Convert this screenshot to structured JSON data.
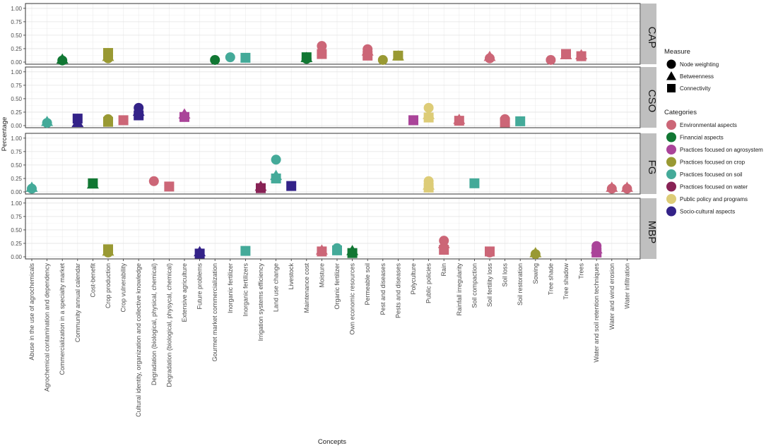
{
  "chart_data": {
    "type": "scatter",
    "xlabel": "Concepts",
    "ylabel": "Percentage",
    "ylim": [
      0,
      1.05
    ],
    "yticks": [
      "0.00",
      "0.25",
      "0.50",
      "0.75",
      "1.00"
    ],
    "grid": true,
    "legend_position": "right",
    "concepts": [
      "Abuse in the use of agrochemicals",
      "Agrochemical contamination and dependency",
      "Commercialization in a specialty market",
      "Community annual calendar",
      "Cost-benefit",
      "Crop production",
      "Crop vulnerability",
      "Cultural identity, organization and collective knowledge",
      "Degradation (biological, physical, chemical)",
      "Degradation (biological, physycal, chemical)",
      "Extensive agriculture",
      "Future problems",
      "Gourmet market commercialization",
      "Inorganic fertilizer",
      "Inorganic fertilizers",
      "Irrigation systems efficiency",
      "Land use change",
      "Livestock",
      "Maintenance cost",
      "Moisture",
      "Organic fertilizer",
      "Own economic resources",
      "Permeable soil",
      "Pest and diseases",
      "Pests and diseases",
      "Polyculture",
      "Public policies",
      "Rain",
      "Rainfall irregularity",
      "Soil compaction",
      "Soil fertility loss",
      "Soil loss",
      "Soil restoration",
      "Sowing",
      "Tree shade",
      "Tree shadow",
      "Trees",
      "Water and soil retention techniques",
      "Water and wind erosion",
      "Water infiltration"
    ],
    "panels": [
      "CAP",
      "CSO",
      "FG",
      "MBP"
    ],
    "measures": [
      {
        "name": "Node weighting",
        "shape": "circle"
      },
      {
        "name": "Betweenness",
        "shape": "triangle"
      },
      {
        "name": "Connectivity",
        "shape": "square"
      }
    ],
    "categories": [
      {
        "name": "Environmental aspects",
        "color": "#cc6677"
      },
      {
        "name": "Financial aspects",
        "color": "#117733"
      },
      {
        "name": "Practices focused on agrosystem",
        "color": "#aa4499"
      },
      {
        "name": "Practices focused on crop",
        "color": "#999933"
      },
      {
        "name": "Practices focused on soil",
        "color": "#44aa99"
      },
      {
        "name": "Practices focused on water",
        "color": "#882255"
      },
      {
        "name": "Public policy and programs",
        "color": "#ddcc77"
      },
      {
        "name": "Socio-cultural aspects",
        "color": "#332288"
      }
    ],
    "points": [
      {
        "panel": "CAP",
        "concept": "Commercialization in a specialty market",
        "category": "Financial aspects",
        "measure": "Betweenness",
        "y": 0.05
      },
      {
        "panel": "CAP",
        "concept": "Commercialization in a specialty market",
        "category": "Financial aspects",
        "measure": "Node weighting",
        "y": 0.03
      },
      {
        "panel": "CAP",
        "concept": "Crop production",
        "category": "Practices focused on crop",
        "measure": "Connectivity",
        "y": 0.17
      },
      {
        "panel": "CAP",
        "concept": "Crop production",
        "category": "Practices focused on crop",
        "measure": "Betweenness",
        "y": 0.1
      },
      {
        "panel": "CAP",
        "concept": "Crop production",
        "category": "Practices focused on crop",
        "measure": "Node weighting",
        "y": 0.07
      },
      {
        "panel": "CAP",
        "concept": "Gourmet market commercialization",
        "category": "Financial aspects",
        "measure": "Node weighting",
        "y": 0.04
      },
      {
        "panel": "CAP",
        "concept": "Inorganic fertilizer",
        "category": "Practices focused on soil",
        "measure": "Node weighting",
        "y": 0.09
      },
      {
        "panel": "CAP",
        "concept": "Inorganic fertilizers",
        "category": "Practices focused on soil",
        "measure": "Connectivity",
        "y": 0.08
      },
      {
        "panel": "CAP",
        "concept": "Maintenance cost",
        "category": "Financial aspects",
        "measure": "Connectivity",
        "y": 0.09
      },
      {
        "panel": "CAP",
        "concept": "Maintenance cost",
        "category": "Financial aspects",
        "measure": "Betweenness",
        "y": 0.08
      },
      {
        "panel": "CAP",
        "concept": "Maintenance cost",
        "category": "Financial aspects",
        "measure": "Node weighting",
        "y": 0.06
      },
      {
        "panel": "CAP",
        "concept": "Moisture",
        "category": "Environmental aspects",
        "measure": "Node weighting",
        "y": 0.3
      },
      {
        "panel": "CAP",
        "concept": "Moisture",
        "category": "Environmental aspects",
        "measure": "Connectivity",
        "y": 0.15
      },
      {
        "panel": "CAP",
        "concept": "Permeable soil",
        "category": "Environmental aspects",
        "measure": "Node weighting",
        "y": 0.24
      },
      {
        "panel": "CAP",
        "concept": "Permeable soil",
        "category": "Environmental aspects",
        "measure": "Betweenness",
        "y": 0.2
      },
      {
        "panel": "CAP",
        "concept": "Permeable soil",
        "category": "Environmental aspects",
        "measure": "Connectivity",
        "y": 0.12
      },
      {
        "panel": "CAP",
        "concept": "Pest and diseases",
        "category": "Practices focused on crop",
        "measure": "Node weighting",
        "y": 0.04
      },
      {
        "panel": "CAP",
        "concept": "Pests and diseases",
        "category": "Practices focused on crop",
        "measure": "Connectivity",
        "y": 0.12
      },
      {
        "panel": "CAP",
        "concept": "Pests and diseases",
        "category": "Practices focused on crop",
        "measure": "Betweenness",
        "y": 0.11
      },
      {
        "panel": "CAP",
        "concept": "Soil fertility loss",
        "category": "Environmental aspects",
        "measure": "Betweenness",
        "y": 0.1
      },
      {
        "panel": "CAP",
        "concept": "Soil fertility loss",
        "category": "Environmental aspects",
        "measure": "Node weighting",
        "y": 0.07
      },
      {
        "panel": "CAP",
        "concept": "Tree shade",
        "category": "Environmental aspects",
        "measure": "Node weighting",
        "y": 0.04
      },
      {
        "panel": "CAP",
        "concept": "Tree shadow",
        "category": "Environmental aspects",
        "measure": "Connectivity",
        "y": 0.15
      },
      {
        "panel": "CAP",
        "concept": "Tree shadow",
        "category": "Environmental aspects",
        "measure": "Betweenness",
        "y": 0.13
      },
      {
        "panel": "CAP",
        "concept": "Trees",
        "category": "Environmental aspects",
        "measure": "Betweenness",
        "y": 0.13
      },
      {
        "panel": "CAP",
        "concept": "Trees",
        "category": "Environmental aspects",
        "measure": "Connectivity",
        "y": 0.11
      },
      {
        "panel": "CSO",
        "concept": "Agrochemical contamination and dependency",
        "category": "Practices focused on soil",
        "measure": "Betweenness",
        "y": 0.07
      },
      {
        "panel": "CSO",
        "concept": "Agrochemical contamination and dependency",
        "category": "Practices focused on soil",
        "measure": "Node weighting",
        "y": 0.05
      },
      {
        "panel": "CSO",
        "concept": "Community annual calendar",
        "category": "Socio-cultural aspects",
        "measure": "Connectivity",
        "y": 0.13
      },
      {
        "panel": "CSO",
        "concept": "Community annual calendar",
        "category": "Socio-cultural aspects",
        "measure": "Betweenness",
        "y": 0.05
      },
      {
        "panel": "CSO",
        "concept": "Crop production",
        "category": "Practices focused on crop",
        "measure": "Node weighting",
        "y": 0.12
      },
      {
        "panel": "CSO",
        "concept": "Crop production",
        "category": "Practices focused on crop",
        "measure": "Connectivity",
        "y": 0.07
      },
      {
        "panel": "CSO",
        "concept": "Crop vulnerability",
        "category": "Environmental aspects",
        "measure": "Connectivity",
        "y": 0.1
      },
      {
        "panel": "CSO",
        "concept": "Cultural identity, organization and collective knowledge",
        "category": "Socio-cultural aspects",
        "measure": "Node weighting",
        "y": 0.33
      },
      {
        "panel": "CSO",
        "concept": "Cultural identity, organization and collective knowledge",
        "category": "Socio-cultural aspects",
        "measure": "Betweenness",
        "y": 0.26
      },
      {
        "panel": "CSO",
        "concept": "Cultural identity, organization and collective knowledge",
        "category": "Socio-cultural aspects",
        "measure": "Connectivity",
        "y": 0.19
      },
      {
        "panel": "CSO",
        "concept": "Extensive agriculture",
        "category": "Practices focused on agrosystem",
        "measure": "Betweenness",
        "y": 0.21
      },
      {
        "panel": "CSO",
        "concept": "Extensive agriculture",
        "category": "Practices focused on agrosystem",
        "measure": "Connectivity",
        "y": 0.16
      },
      {
        "panel": "CSO",
        "concept": "Polyculture",
        "category": "Practices focused on agrosystem",
        "measure": "Connectivity",
        "y": 0.1
      },
      {
        "panel": "CSO",
        "concept": "Public policies",
        "category": "Public policy and programs",
        "measure": "Node weighting",
        "y": 0.33
      },
      {
        "panel": "CSO",
        "concept": "Public policies",
        "category": "Public policy and programs",
        "measure": "Betweenness",
        "y": 0.2
      },
      {
        "panel": "CSO",
        "concept": "Public policies",
        "category": "Public policy and programs",
        "measure": "Connectivity",
        "y": 0.15
      },
      {
        "panel": "CSO",
        "concept": "Rainfall irregularity",
        "category": "Environmental aspects",
        "measure": "Betweenness",
        "y": 0.11
      },
      {
        "panel": "CSO",
        "concept": "Rainfall irregularity",
        "category": "Environmental aspects",
        "measure": "Connectivity",
        "y": 0.09
      },
      {
        "panel": "CSO",
        "concept": "Soil loss",
        "category": "Environmental aspects",
        "measure": "Node weighting",
        "y": 0.12
      },
      {
        "panel": "CSO",
        "concept": "Soil loss",
        "category": "Environmental aspects",
        "measure": "Connectivity",
        "y": 0.06
      },
      {
        "panel": "CSO",
        "concept": "Soil restoration",
        "category": "Practices focused on soil",
        "measure": "Connectivity",
        "y": 0.08
      },
      {
        "panel": "FG",
        "concept": "Abuse in the use of agrochemicals",
        "category": "Practices focused on soil",
        "measure": "Betweenness",
        "y": 0.08
      },
      {
        "panel": "FG",
        "concept": "Abuse in the use of agrochemicals",
        "category": "Practices focused on soil",
        "measure": "Node weighting",
        "y": 0.06
      },
      {
        "panel": "FG",
        "concept": "Cost-benefit",
        "category": "Financial aspects",
        "measure": "Connectivity",
        "y": 0.16
      },
      {
        "panel": "FG",
        "concept": "Cost-benefit",
        "category": "Financial aspects",
        "measure": "Betweenness",
        "y": 0.14
      },
      {
        "panel": "FG",
        "concept": "Degradation (biological, physical, chemical)",
        "category": "Environmental aspects",
        "measure": "Node weighting",
        "y": 0.2
      },
      {
        "panel": "FG",
        "concept": "Degradation (biological, physycal, chemical)",
        "category": "Environmental aspects",
        "measure": "Connectivity",
        "y": 0.1
      },
      {
        "panel": "FG",
        "concept": "Irrigation systems efficiency",
        "category": "Practices focused on water",
        "measure": "Betweenness",
        "y": 0.1
      },
      {
        "panel": "FG",
        "concept": "Irrigation systems efficiency",
        "category": "Practices focused on water",
        "measure": "Connectivity",
        "y": 0.07
      },
      {
        "panel": "FG",
        "concept": "Land use change",
        "category": "Practices focused on soil",
        "measure": "Node weighting",
        "y": 0.6
      },
      {
        "panel": "FG",
        "concept": "Land use change",
        "category": "Practices focused on soil",
        "measure": "Betweenness",
        "y": 0.3
      },
      {
        "panel": "FG",
        "concept": "Land use change",
        "category": "Practices focused on soil",
        "measure": "Connectivity",
        "y": 0.25
      },
      {
        "panel": "FG",
        "concept": "Livestock",
        "category": "Socio-cultural aspects",
        "measure": "Connectivity",
        "y": 0.11
      },
      {
        "panel": "FG",
        "concept": "Public policies",
        "category": "Public policy and programs",
        "measure": "Node weighting",
        "y": 0.2
      },
      {
        "panel": "FG",
        "concept": "Public policies",
        "category": "Public policy and programs",
        "measure": "Betweenness",
        "y": 0.12
      },
      {
        "panel": "FG",
        "concept": "Public policies",
        "category": "Public policy and programs",
        "measure": "Connectivity",
        "y": 0.08
      },
      {
        "panel": "FG",
        "concept": "Soil compaction",
        "category": "Practices focused on soil",
        "measure": "Connectivity",
        "y": 0.16
      },
      {
        "panel": "FG",
        "concept": "Water and wind erosion",
        "category": "Environmental aspects",
        "measure": "Betweenness",
        "y": 0.08
      },
      {
        "panel": "FG",
        "concept": "Water and wind erosion",
        "category": "Environmental aspects",
        "measure": "Node weighting",
        "y": 0.06
      },
      {
        "panel": "FG",
        "concept": "Water infiltration",
        "category": "Environmental aspects",
        "measure": "Betweenness",
        "y": 0.08
      },
      {
        "panel": "FG",
        "concept": "Water infiltration",
        "category": "Environmental aspects",
        "measure": "Node weighting",
        "y": 0.06
      },
      {
        "panel": "MBP",
        "concept": "Crop production",
        "category": "Practices focused on crop",
        "measure": "Connectivity",
        "y": 0.14
      },
      {
        "panel": "MBP",
        "concept": "Crop production",
        "category": "Practices focused on crop",
        "measure": "Betweenness",
        "y": 0.1
      },
      {
        "panel": "MBP",
        "concept": "Crop production",
        "category": "Practices focused on crop",
        "measure": "Node weighting",
        "y": 0.08
      },
      {
        "panel": "MBP",
        "concept": "Future problems",
        "category": "Socio-cultural aspects",
        "measure": "Betweenness",
        "y": 0.09
      },
      {
        "panel": "MBP",
        "concept": "Future problems",
        "category": "Socio-cultural aspects",
        "measure": "Connectivity",
        "y": 0.06
      },
      {
        "panel": "MBP",
        "concept": "Inorganic fertilizers",
        "category": "Practices focused on soil",
        "measure": "Connectivity",
        "y": 0.11
      },
      {
        "panel": "MBP",
        "concept": "Moisture",
        "category": "Environmental aspects",
        "measure": "Betweenness",
        "y": 0.12
      },
      {
        "panel": "MBP",
        "concept": "Moisture",
        "category": "Environmental aspects",
        "measure": "Connectivity",
        "y": 0.1
      },
      {
        "panel": "MBP",
        "concept": "Organic fertilizer",
        "category": "Practices focused on soil",
        "measure": "Node weighting",
        "y": 0.16
      },
      {
        "panel": "MBP",
        "concept": "Organic fertilizer",
        "category": "Practices focused on soil",
        "measure": "Connectivity",
        "y": 0.12
      },
      {
        "panel": "MBP",
        "concept": "Own economic resources",
        "category": "Financial aspects",
        "measure": "Betweenness",
        "y": 0.11
      },
      {
        "panel": "MBP",
        "concept": "Own economic resources",
        "category": "Financial aspects",
        "measure": "Connectivity",
        "y": 0.07
      },
      {
        "panel": "MBP",
        "concept": "Rain",
        "category": "Environmental aspects",
        "measure": "Node weighting",
        "y": 0.3
      },
      {
        "panel": "MBP",
        "concept": "Rain",
        "category": "Environmental aspects",
        "measure": "Betweenness",
        "y": 0.24
      },
      {
        "panel": "MBP",
        "concept": "Rain",
        "category": "Environmental aspects",
        "measure": "Connectivity",
        "y": 0.13
      },
      {
        "panel": "MBP",
        "concept": "Soil fertility loss",
        "category": "Environmental aspects",
        "measure": "Connectivity",
        "y": 0.1
      },
      {
        "panel": "MBP",
        "concept": "Soil fertility loss",
        "category": "Environmental aspects",
        "measure": "Node weighting",
        "y": 0.08
      },
      {
        "panel": "MBP",
        "concept": "Sowing",
        "category": "Practices focused on crop",
        "measure": "Betweenness",
        "y": 0.07
      },
      {
        "panel": "MBP",
        "concept": "Sowing",
        "category": "Practices focused on crop",
        "measure": "Node weighting",
        "y": 0.05
      },
      {
        "panel": "MBP",
        "concept": "Water and soil retention techniques",
        "category": "Practices focused on agrosystem",
        "measure": "Node weighting",
        "y": 0.2
      },
      {
        "panel": "MBP",
        "concept": "Water and soil retention techniques",
        "category": "Practices focused on agrosystem",
        "measure": "Betweenness",
        "y": 0.14
      },
      {
        "panel": "MBP",
        "concept": "Water and soil retention techniques",
        "category": "Practices focused on agrosystem",
        "measure": "Connectivity",
        "y": 0.08
      }
    ]
  },
  "legend": {
    "measure_title": "Measure",
    "categories_title": "Categories"
  }
}
